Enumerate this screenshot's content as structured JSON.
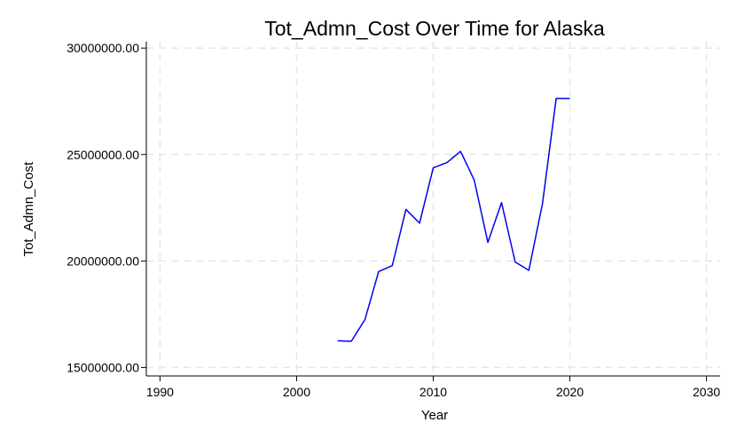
{
  "chart_data": {
    "type": "line",
    "title": "Tot_Admn_Cost Over Time for Alaska",
    "xlabel": "Year",
    "ylabel": "Tot_Admn_Cost",
    "xlim": [
      1989,
      2031
    ],
    "ylim": [
      14600000,
      30300000
    ],
    "x_ticks": [
      1990,
      2000,
      2010,
      2020,
      2030
    ],
    "x_tick_labels": [
      "1990",
      "2000",
      "2010",
      "2020",
      "2030"
    ],
    "y_ticks": [
      15000000,
      20000000,
      25000000,
      30000000
    ],
    "y_tick_labels": [
      "15000000.00",
      "20000000.00",
      "25000000.00",
      "30000000.00"
    ],
    "grid": true,
    "line_color": "#0000ee",
    "series": [
      {
        "x": [
          2003,
          2004,
          2005,
          2006,
          2007,
          2008,
          2009,
          2010,
          2011,
          2012,
          2013,
          2014,
          2015,
          2016,
          2017,
          2018,
          2019,
          2020
        ],
        "values": [
          16250000,
          16230000,
          17250000,
          19500000,
          19780000,
          22420000,
          21780000,
          24380000,
          24620000,
          25150000,
          23800000,
          20870000,
          22740000,
          19950000,
          19560000,
          22700000,
          27630000,
          27630000
        ]
      }
    ]
  }
}
